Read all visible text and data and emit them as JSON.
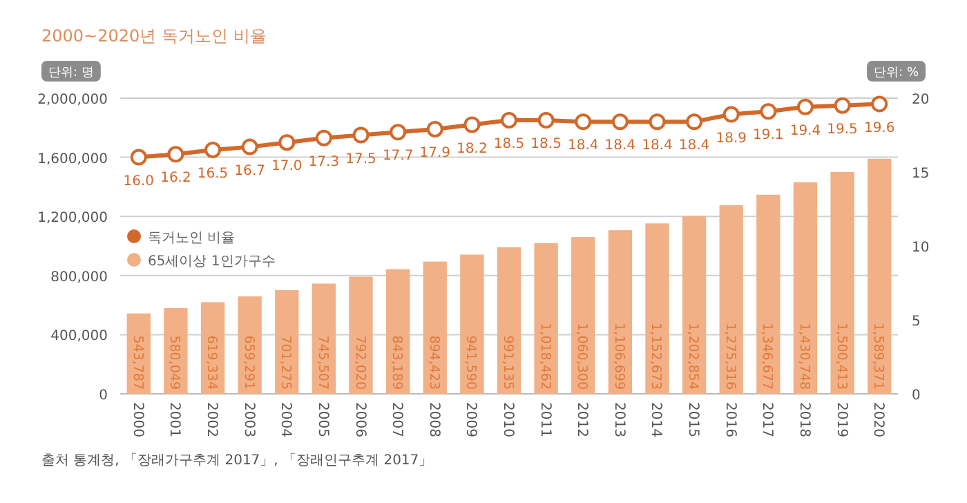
{
  "chart_data": {
    "type": "bar",
    "title": "2000~2020년 독거노인 비율",
    "ylabel": "단위: 명",
    "y2label": "단위: %",
    "categories": [
      "2000",
      "2001",
      "2002",
      "2003",
      "2004",
      "2005",
      "2006",
      "2007",
      "2008",
      "2009",
      "2010",
      "2011",
      "2012",
      "2013",
      "2014",
      "2015",
      "2016",
      "2017",
      "2018",
      "2019",
      "2020"
    ],
    "series": [
      {
        "name": "독거노인 비율",
        "type": "line",
        "axis": "y2",
        "color": "#d2692a",
        "marker": "circle",
        "values": [
          16.0,
          16.2,
          16.5,
          16.7,
          17.0,
          17.3,
          17.5,
          17.7,
          17.9,
          18.2,
          18.5,
          18.5,
          18.4,
          18.4,
          18.4,
          18.4,
          18.9,
          19.1,
          19.4,
          19.5,
          19.6
        ],
        "value_labels": [
          "16.0",
          "16.2",
          "16.5",
          "16.7",
          "17.0",
          "17.3",
          "17.5",
          "17.7",
          "17.9",
          "18.2",
          "18.5",
          "18.5",
          "18.4",
          "18.4",
          "18.4",
          "18.4",
          "18.9",
          "19.1",
          "19.4",
          "19.5",
          "19.6"
        ]
      },
      {
        "name": "65세이상 1인가구수",
        "color": "#f2b086",
        "values": [
          543787,
          580049,
          619334,
          659291,
          701275,
          745507,
          792020,
          843189,
          894423,
          941590,
          991135,
          1018462,
          1060300,
          1106699,
          1152673,
          1202854,
          1275316,
          1346677,
          1430748,
          1500413,
          1589371
        ],
        "value_labels": [
          "543,787",
          "580,049",
          "619,334",
          "659,291",
          "701,275",
          "745,507",
          "792,020",
          "843,189",
          "894,423",
          "941,590",
          "991,135",
          "1,018,462",
          "1,060,300",
          "1,106,699",
          "1,152,673",
          "1,202,854",
          "1,275,316",
          "1,346,677",
          "1,430,748",
          "1,500,413",
          "1,589,371"
        ]
      }
    ],
    "ylim": [
      0,
      2000000
    ],
    "yticks": [
      0,
      {
        "value": 400000,
        "label": "400,000"
      },
      {
        "value": 800000,
        "label": "800,000"
      },
      {
        "value": 1200000,
        "label": "1,200,000"
      },
      {
        "value": 1600000,
        "label": "1,600,000"
      },
      {
        "value": 2000000,
        "label": "2,000,000"
      }
    ],
    "y2lim": [
      0,
      20
    ],
    "y2ticks": [
      0,
      5,
      10,
      15,
      20
    ],
    "grid": "y",
    "legend": "left",
    "annotations": [
      "출처 통계청, 「장래가구추계 2017」, 「장래인구추계 2017」"
    ]
  }
}
